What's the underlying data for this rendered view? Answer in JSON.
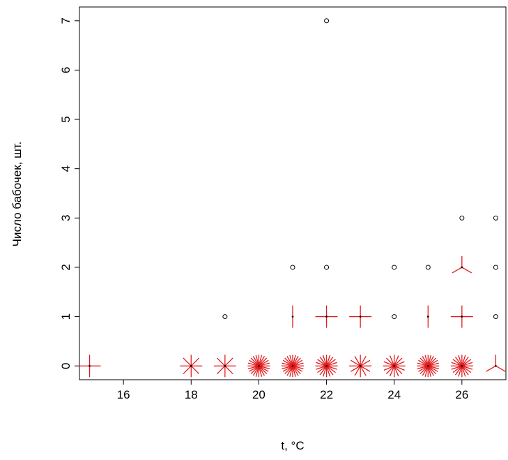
{
  "chart_data": {
    "type": "scatter",
    "subtype": "sunflower",
    "xlabel": "t, °C",
    "ylabel": "Число бабочек, шт.",
    "xlim": [
      14.7,
      27.3
    ],
    "ylim": [
      -0.28,
      7.28
    ],
    "x_ticks": [
      "16",
      "18",
      "20",
      "22",
      "24",
      "26"
    ],
    "y_ticks": [
      "0",
      "1",
      "2",
      "3",
      "4",
      "5",
      "6",
      "7"
    ],
    "grid": false,
    "colors": {
      "sunflower": "#e41a1c",
      "point": "#000000"
    },
    "points": [
      {
        "x": 15,
        "y": 0,
        "count": 4
      },
      {
        "x": 18,
        "y": 0,
        "count": 8
      },
      {
        "x": 19,
        "y": 0,
        "count": 8
      },
      {
        "x": 19,
        "y": 1,
        "count": 1
      },
      {
        "x": 20,
        "y": 0,
        "count": 24
      },
      {
        "x": 21,
        "y": 0,
        "count": 24
      },
      {
        "x": 21,
        "y": 1,
        "count": 2
      },
      {
        "x": 21,
        "y": 2,
        "count": 1
      },
      {
        "x": 22,
        "y": 0,
        "count": 20
      },
      {
        "x": 22,
        "y": 1,
        "count": 4
      },
      {
        "x": 22,
        "y": 2,
        "count": 1
      },
      {
        "x": 22,
        "y": 7,
        "count": 1
      },
      {
        "x": 23,
        "y": 0,
        "count": 12
      },
      {
        "x": 23,
        "y": 1,
        "count": 4
      },
      {
        "x": 24,
        "y": 0,
        "count": 16
      },
      {
        "x": 24,
        "y": 1,
        "count": 1
      },
      {
        "x": 24,
        "y": 2,
        "count": 1
      },
      {
        "x": 25,
        "y": 0,
        "count": 24
      },
      {
        "x": 25,
        "y": 1,
        "count": 2
      },
      {
        "x": 25,
        "y": 2,
        "count": 1
      },
      {
        "x": 26,
        "y": 0,
        "count": 20
      },
      {
        "x": 26,
        "y": 1,
        "count": 4
      },
      {
        "x": 26,
        "y": 2,
        "count": 3
      },
      {
        "x": 26,
        "y": 3,
        "count": 1
      },
      {
        "x": 27,
        "y": 0,
        "count": 3
      },
      {
        "x": 27,
        "y": 1,
        "count": 1
      },
      {
        "x": 27,
        "y": 2,
        "count": 1
      },
      {
        "x": 27,
        "y": 3,
        "count": 1
      }
    ]
  }
}
